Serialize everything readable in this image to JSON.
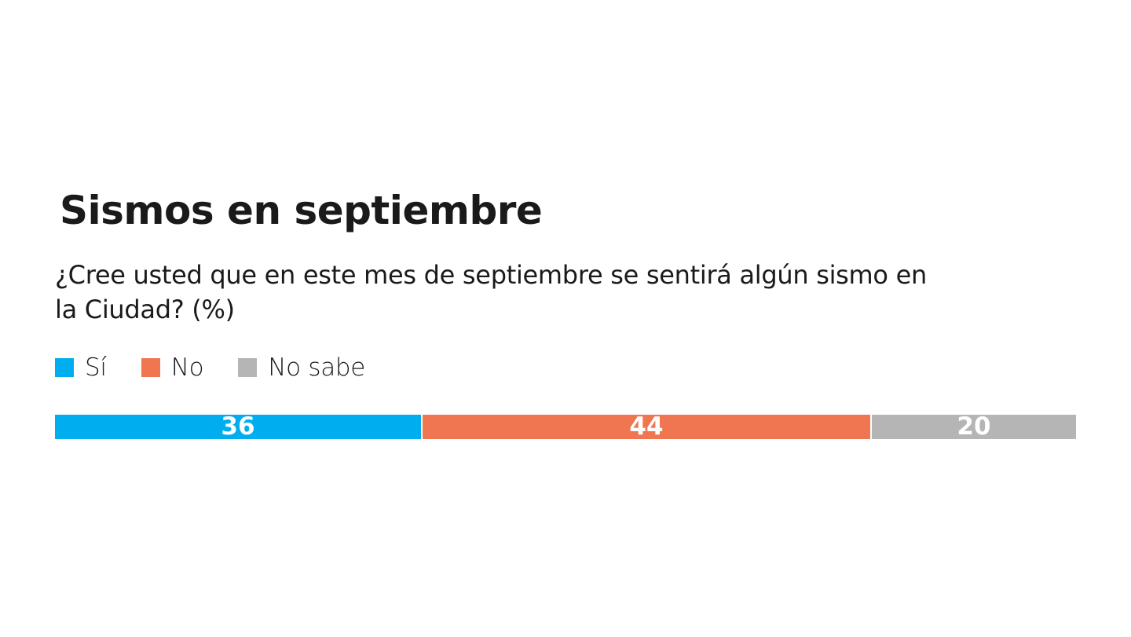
{
  "title": "Sismos en septiembre",
  "subtitle": "¿Cree usted que en este mes de septiembre se sentirá algún sismo en la Ciudad? (%)",
  "legend": [
    {
      "label": "Sí",
      "color": "#00aeef"
    },
    {
      "label": "No",
      "color": "#f07651"
    },
    {
      "label": "No sabe",
      "color": "#b5b5b5"
    }
  ],
  "chart_data": {
    "type": "bar",
    "orientation": "horizontal-stacked",
    "categories": [
      "Sí",
      "No",
      "No sabe"
    ],
    "values": [
      36,
      44,
      20
    ],
    "data_labels": [
      "36",
      "44",
      "20"
    ],
    "colors": [
      "#00aeef",
      "#f07651",
      "#b5b5b5"
    ],
    "title": "Sismos en septiembre",
    "subtitle": "¿Cree usted que en este mes de septiembre se sentirá algún sismo en la Ciudad? (%)",
    "xlim": [
      0,
      100
    ],
    "grid": false,
    "legend_position": "top-left"
  }
}
